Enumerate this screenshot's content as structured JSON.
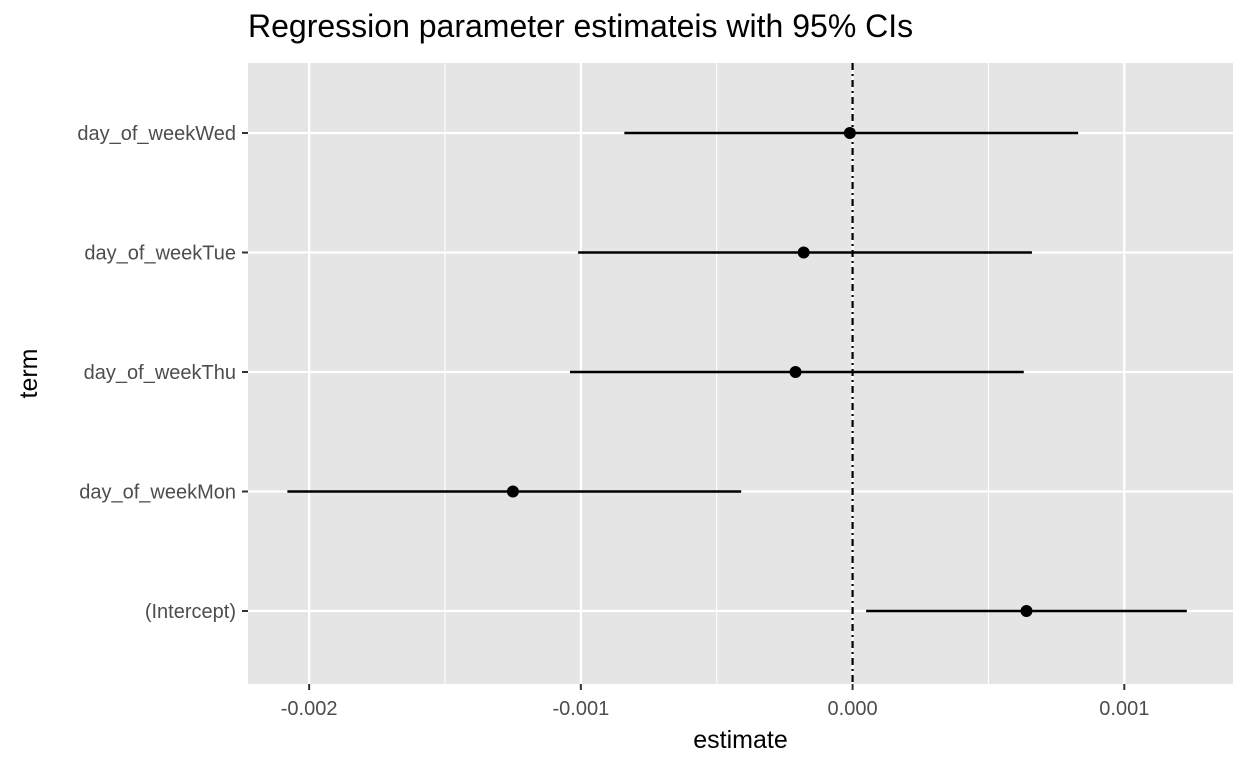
{
  "chart_data": {
    "type": "scatter",
    "subtype": "coefficient-plot with horizontal confidence intervals",
    "title": "Regression parameter estimateis with 95% CIs",
    "xlabel": "estimate",
    "ylabel": "term",
    "xlim": [
      -0.002225,
      0.0014
    ],
    "x_ticks": [
      -0.002,
      -0.0015,
      -0.001,
      -0.0005,
      0.0,
      0.0005,
      0.001
    ],
    "x_tick_labels": [
      "-0.002",
      "",
      "-0.001",
      "",
      "0.000",
      "",
      "0.001"
    ],
    "reference_line": {
      "x": 0.0,
      "style": "dotdash"
    },
    "categories": [
      "day_of_weekWed",
      "day_of_weekTue",
      "day_of_weekThu",
      "day_of_weekMon",
      "(Intercept)"
    ],
    "series": [
      {
        "estimate": [
          -1e-05,
          -0.00018,
          -0.00021,
          -0.00125,
          0.00064
        ],
        "conf_low": [
          -0.00084,
          -0.00101,
          -0.00104,
          -0.00208,
          5e-05
        ],
        "conf_high": [
          0.00083,
          0.00066,
          0.00063,
          -0.00041,
          0.00123
        ]
      }
    ],
    "grid": true,
    "background": "#e5e5e5",
    "colors": {
      "panel": "#e5e5e5",
      "grid": "#ffffff",
      "marks": "#000000",
      "axis_text": "#4d4d4d"
    }
  }
}
